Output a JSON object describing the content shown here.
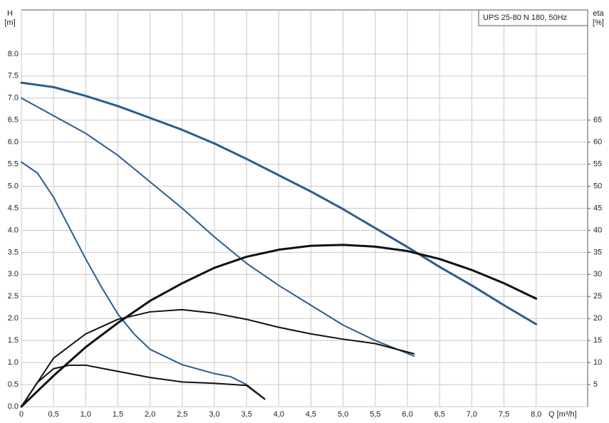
{
  "chart_data": {
    "type": "line",
    "title": "UPS 25-80 N 180, 50Hz",
    "x_label": "Q [m³/h]",
    "y_label": "H",
    "y_unit": "[m]",
    "y2_label": "eta",
    "y2_unit": "[%]",
    "xlim": [
      0,
      8.8
    ],
    "ylim": [
      0,
      9
    ],
    "y2lim": [
      0,
      90
    ],
    "grid": true,
    "xticks": [
      0,
      {
        "value": 0.5,
        "label": "0,5"
      },
      {
        "value": 1,
        "label": "1,0"
      },
      {
        "value": 1.5,
        "label": "1,5"
      },
      {
        "value": 2,
        "label": "2,0"
      },
      {
        "value": 2.5,
        "label": "2,5"
      },
      {
        "value": 3,
        "label": "3,0"
      },
      {
        "value": 3.5,
        "label": "3,5"
      },
      {
        "value": 4,
        "label": "4,0"
      },
      {
        "value": 4.5,
        "label": "4,5"
      },
      {
        "value": 5,
        "label": "5,0"
      },
      {
        "value": 5.5,
        "label": "5,5"
      },
      {
        "value": 6,
        "label": "6,0"
      },
      {
        "value": 6.5,
        "label": "6,5"
      },
      {
        "value": 7,
        "label": "7,0"
      },
      {
        "value": 7.5,
        "label": "7,5"
      },
      {
        "value": 8,
        "label": "8,0"
      }
    ],
    "yticks": [
      {
        "value": 0,
        "label": "0.0"
      },
      0.5,
      {
        "value": 1,
        "label": "1.0"
      },
      1.5,
      {
        "value": 2,
        "label": "2.0"
      },
      2.5,
      {
        "value": 3,
        "label": "3.0"
      },
      3.5,
      {
        "value": 4,
        "label": "4.0"
      },
      4.5,
      {
        "value": 5,
        "label": "5.0"
      },
      5.5,
      {
        "value": 6,
        "label": "6.0"
      },
      6.5,
      {
        "value": 7,
        "label": "7.0"
      },
      7.5,
      {
        "value": 8,
        "label": "8.0"
      }
    ],
    "y2ticks": [
      5,
      10,
      15,
      20,
      25,
      30,
      35,
      40,
      45,
      50,
      55,
      60,
      65
    ],
    "series": [
      {
        "color": "#2b5c8c",
        "width": 3,
        "x": [
          0,
          0.5,
          1,
          1.5,
          2,
          2.5,
          3,
          3.5,
          4,
          4.5,
          5,
          5.5,
          6,
          6.5,
          7,
          7.5,
          8
        ],
        "values": [
          7.35,
          7.25,
          7.05,
          6.82,
          6.55,
          6.28,
          5.97,
          5.62,
          5.25,
          4.88,
          4.48,
          4.05,
          3.62,
          3.17,
          2.75,
          2.3,
          1.87
        ]
      },
      {
        "color": "#2b5c8c",
        "width": 2,
        "x": [
          0,
          0.5,
          1,
          1.5,
          2,
          2.5,
          3,
          3.5,
          4,
          4.5,
          5,
          5.5,
          6.1
        ],
        "values": [
          7.0,
          6.6,
          6.2,
          5.7,
          5.1,
          4.5,
          3.85,
          3.25,
          2.75,
          2.3,
          1.85,
          1.5,
          1.15
        ]
      },
      {
        "color": "#2b5c8c",
        "width": 2,
        "x": [
          0,
          0.25,
          0.5,
          0.75,
          1,
          1.25,
          1.5,
          1.75,
          2,
          2.5,
          3,
          3.25,
          3.5,
          3.78
        ],
        "values": [
          5.55,
          5.3,
          4.75,
          4.05,
          3.35,
          2.7,
          2.1,
          1.65,
          1.3,
          0.95,
          0.75,
          0.68,
          0.5,
          0.18
        ]
      },
      {
        "color": "#111111",
        "width": 3,
        "axis": "y2",
        "x": [
          0,
          0.5,
          1,
          1.5,
          2,
          2.5,
          3,
          3.5,
          4,
          4.5,
          5,
          5.5,
          6,
          6.5,
          7,
          7.5,
          8
        ],
        "values": [
          0,
          7,
          13.5,
          19,
          24,
          28,
          31.5,
          34,
          35.6,
          36.5,
          36.7,
          36.3,
          35.3,
          33.5,
          31,
          28,
          24.5
        ]
      },
      {
        "color": "#111111",
        "width": 2,
        "axis": "y2",
        "x": [
          0,
          0.5,
          1,
          1.5,
          2,
          2.5,
          3,
          3.5,
          4,
          4.5,
          5,
          5.5,
          6.1
        ],
        "values": [
          0,
          11,
          16.5,
          19.8,
          21.5,
          22,
          21.2,
          19.8,
          18,
          16.5,
          15.3,
          14.3,
          12
        ]
      },
      {
        "color": "#111111",
        "width": 2,
        "axis": "y2",
        "x": [
          0,
          0.25,
          0.5,
          0.75,
          1,
          1.5,
          2,
          2.5,
          3,
          3.5,
          3.78
        ],
        "values": [
          0,
          5.5,
          8.6,
          9.4,
          9.4,
          8,
          6.6,
          5.6,
          5.3,
          4.8,
          1.7
        ]
      }
    ]
  }
}
